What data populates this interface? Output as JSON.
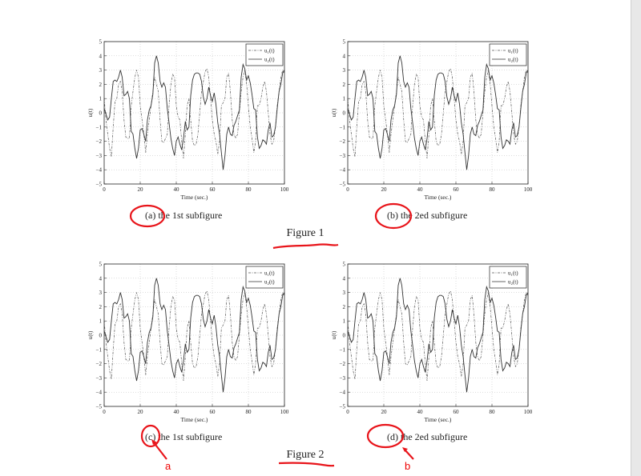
{
  "figures": [
    {
      "title": "Figure 1",
      "subcaptions": [
        {
          "label": "(a)",
          "text": "the 1st subfigure"
        },
        {
          "label": "(b)",
          "text": "the 2ed subfigure"
        }
      ]
    },
    {
      "title": "Figure 2",
      "subcaptions": [
        {
          "label": "(c)",
          "text": "the 1st subfigure"
        },
        {
          "label": "(d)",
          "text": "the 2ed subfigure"
        }
      ]
    }
  ],
  "annotations": {
    "arrow_a_label": "a",
    "arrow_b_label": "b",
    "color": "#e8141a"
  },
  "chart_data": {
    "type": "line",
    "panels": [
      "(a)",
      "(b)",
      "(c)",
      "(d)"
    ],
    "xlabel": "Time (sec.)",
    "ylabel": "u(t)",
    "xlim": [
      0,
      100
    ],
    "ylim": [
      -5,
      5
    ],
    "xticks": [
      0,
      20,
      40,
      60,
      80,
      100
    ],
    "yticks": [
      -5,
      -4,
      -3,
      -2,
      -1,
      0,
      1,
      2,
      3,
      4,
      5
    ],
    "grid": true,
    "legend": "top-right",
    "x": "0..100 step 1",
    "series": [
      {
        "name": "u₁(t)",
        "style": "dash-dot",
        "color": "#555555",
        "values": [
          1.0,
          -0.5,
          -1.5,
          -2.5,
          -3.1,
          -1.0,
          0.8,
          1.0,
          2.0,
          2.2,
          1.5,
          -0.5,
          -1.7,
          -1.8,
          -1.8,
          0.5,
          1.5,
          2.5,
          3.0,
          2.5,
          0.5,
          -0.5,
          -1.5,
          -2.8,
          -1.5,
          -0.5,
          0.5,
          1.5,
          2.5,
          2.0,
          1.5,
          -0.5,
          -2.0,
          -2.1,
          -1.8,
          -1.5,
          0.5,
          2.0,
          2.7,
          2.5,
          0.5,
          -0.3,
          -0.5,
          -2.0,
          -3.2,
          -1.5,
          0.5,
          1.0,
          -0.5,
          -2.0,
          -2.3,
          -2.2,
          -1.5,
          0.0,
          1.5,
          2.2,
          2.9,
          3.1,
          2.5,
          1.0,
          -0.5,
          -1.5,
          -2.0,
          -2.9,
          -2.0,
          0.5,
          0.7,
          1.0,
          2.5,
          2.8,
          1.5,
          -0.5,
          -1.5,
          -1.8,
          -1.5,
          0.0,
          1.5,
          2.5,
          3.0,
          2.0,
          0.5,
          -1.0,
          -1.8,
          -2.8,
          -2.0,
          0.5,
          0.5,
          1.0,
          1.8,
          2.2,
          1.5,
          0.0,
          -1.5,
          -2.2,
          -2.0,
          -1.0,
          0.5,
          1.5,
          2.5,
          3.0,
          2.8
        ]
      },
      {
        "name": "u₂(t)",
        "style": "solid",
        "color": "#333333",
        "values": [
          0.3,
          -0.1,
          -0.5,
          -0.3,
          1.0,
          2.2,
          2.3,
          2.2,
          2.5,
          3.0,
          2.5,
          1.2,
          1.3,
          1.5,
          1.0,
          -1.3,
          -1.5,
          -2.5,
          -3.2,
          -2.5,
          -1.2,
          -1.1,
          -1.5,
          -2.0,
          -0.5,
          0.2,
          0.5,
          1.3,
          3.5,
          4.0,
          3.5,
          2.2,
          1.8,
          2.1,
          1.8,
          0.3,
          -0.7,
          -1.8,
          -2.5,
          -3.0,
          -2.0,
          -1.7,
          -2.2,
          -2.6,
          -1.8,
          -0.6,
          -1.2,
          -1.0,
          1.2,
          2.3,
          2.7,
          2.8,
          2.8,
          2.7,
          2.2,
          1.1,
          0.6,
          1.0,
          1.8,
          1.2,
          0.8,
          1.4,
          0.6,
          -0.7,
          -1.5,
          -2.8,
          -4.0,
          -3.0,
          -1.5,
          -1.0,
          -1.5,
          -1.6,
          -0.9,
          -0.6,
          -0.2,
          0.2,
          2.5,
          3.4,
          3.1,
          2.3,
          2.6,
          2.1,
          1.3,
          0.3,
          0.2,
          -1.7,
          -2.5,
          -2.3,
          -1.9,
          -2.0,
          -2.2,
          -1.2,
          -0.7,
          -1.7,
          -1.6,
          -1.0,
          0.3,
          1.5,
          2.0,
          2.8,
          3.0
        ]
      }
    ]
  }
}
